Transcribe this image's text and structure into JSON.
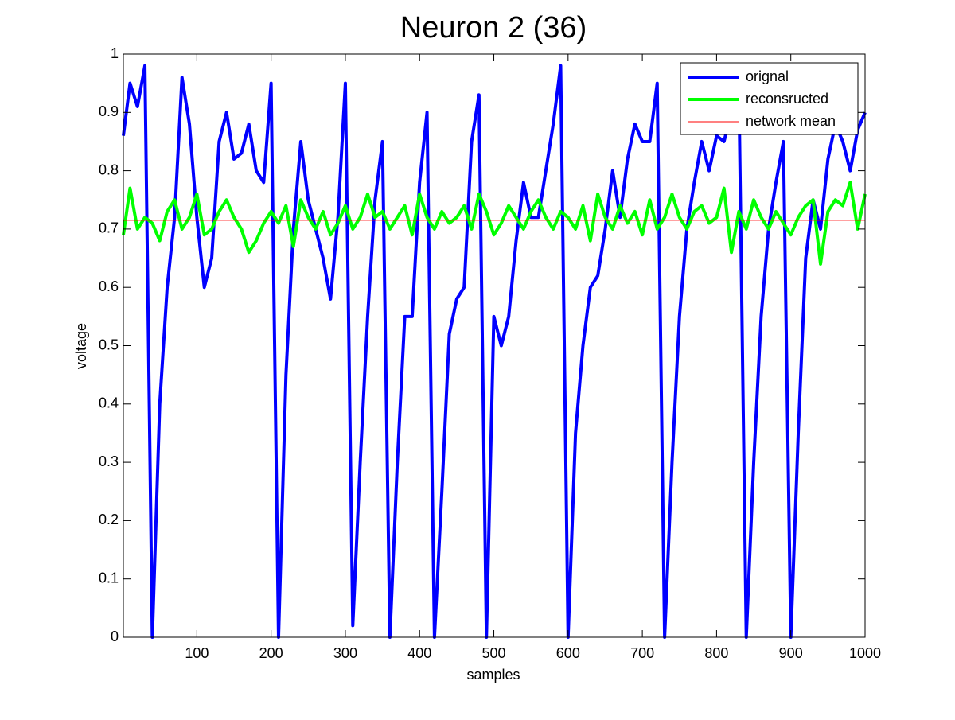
{
  "chart_data": {
    "type": "line",
    "title": "Neuron 2 (36)",
    "x_label": "samples",
    "y_label": "voltage",
    "xlim": [
      1,
      1000
    ],
    "ylim": [
      0,
      1
    ],
    "xticks": [
      100,
      200,
      300,
      400,
      500,
      600,
      700,
      800,
      900,
      1000
    ],
    "yticks": [
      0,
      0.1,
      0.2,
      0.3,
      0.4,
      0.5,
      0.6,
      0.7,
      0.8,
      0.9,
      1
    ],
    "grid": false,
    "legend": "upper right",
    "series": [
      {
        "name": "orignal",
        "color": "#0000ff",
        "width": 4,
        "x": [
          1,
          10,
          20,
          30,
          40,
          50,
          60,
          70,
          80,
          90,
          100,
          110,
          120,
          130,
          140,
          150,
          160,
          170,
          180,
          190,
          200,
          210,
          220,
          230,
          240,
          250,
          260,
          270,
          280,
          290,
          300,
          310,
          320,
          330,
          340,
          350,
          360,
          370,
          380,
          390,
          400,
          410,
          420,
          430,
          440,
          450,
          460,
          470,
          480,
          490,
          500,
          510,
          520,
          530,
          540,
          550,
          560,
          570,
          580,
          590,
          600,
          610,
          620,
          630,
          640,
          650,
          660,
          670,
          680,
          690,
          700,
          710,
          720,
          730,
          740,
          750,
          760,
          770,
          780,
          790,
          800,
          810,
          820,
          830,
          840,
          850,
          860,
          870,
          880,
          890,
          900,
          910,
          920,
          930,
          940,
          950,
          960,
          970,
          980,
          990,
          1000
        ],
        "values": [
          0.86,
          0.95,
          0.91,
          0.98,
          0.0,
          0.4,
          0.6,
          0.72,
          0.96,
          0.88,
          0.72,
          0.6,
          0.65,
          0.85,
          0.9,
          0.82,
          0.83,
          0.88,
          0.8,
          0.78,
          0.95,
          0.0,
          0.45,
          0.7,
          0.85,
          0.75,
          0.7,
          0.65,
          0.58,
          0.72,
          0.95,
          0.02,
          0.3,
          0.55,
          0.75,
          0.85,
          0.0,
          0.3,
          0.55,
          0.55,
          0.78,
          0.9,
          0.0,
          0.25,
          0.52,
          0.58,
          0.6,
          0.85,
          0.93,
          0.0,
          0.55,
          0.5,
          0.55,
          0.68,
          0.78,
          0.72,
          0.72,
          0.8,
          0.88,
          0.98,
          0.0,
          0.35,
          0.5,
          0.6,
          0.62,
          0.7,
          0.8,
          0.72,
          0.82,
          0.88,
          0.85,
          0.85,
          0.95,
          0.0,
          0.3,
          0.55,
          0.7,
          0.78,
          0.85,
          0.8,
          0.86,
          0.85,
          0.9,
          0.95,
          0.0,
          0.3,
          0.55,
          0.7,
          0.78,
          0.85,
          0.0,
          0.35,
          0.65,
          0.75,
          0.7,
          0.82,
          0.88,
          0.85,
          0.8,
          0.87,
          0.9
        ]
      },
      {
        "name": "reconsructed",
        "color": "#00ff00",
        "width": 4,
        "x": [
          1,
          10,
          20,
          30,
          40,
          50,
          60,
          70,
          80,
          90,
          100,
          110,
          120,
          130,
          140,
          150,
          160,
          170,
          180,
          190,
          200,
          210,
          220,
          230,
          240,
          250,
          260,
          270,
          280,
          290,
          300,
          310,
          320,
          330,
          340,
          350,
          360,
          370,
          380,
          390,
          400,
          410,
          420,
          430,
          440,
          450,
          460,
          470,
          480,
          490,
          500,
          510,
          520,
          530,
          540,
          550,
          560,
          570,
          580,
          590,
          600,
          610,
          620,
          630,
          640,
          650,
          660,
          670,
          680,
          690,
          700,
          710,
          720,
          730,
          740,
          750,
          760,
          770,
          780,
          790,
          800,
          810,
          820,
          830,
          840,
          850,
          860,
          870,
          880,
          890,
          900,
          910,
          920,
          930,
          940,
          950,
          960,
          970,
          980,
          990,
          1000
        ],
        "values": [
          0.69,
          0.77,
          0.7,
          0.72,
          0.71,
          0.68,
          0.73,
          0.75,
          0.7,
          0.72,
          0.76,
          0.69,
          0.7,
          0.73,
          0.75,
          0.72,
          0.7,
          0.66,
          0.68,
          0.71,
          0.73,
          0.71,
          0.74,
          0.67,
          0.75,
          0.72,
          0.7,
          0.73,
          0.69,
          0.71,
          0.74,
          0.7,
          0.72,
          0.76,
          0.72,
          0.73,
          0.7,
          0.72,
          0.74,
          0.69,
          0.76,
          0.72,
          0.7,
          0.73,
          0.71,
          0.72,
          0.74,
          0.7,
          0.76,
          0.73,
          0.69,
          0.71,
          0.74,
          0.72,
          0.7,
          0.73,
          0.75,
          0.72,
          0.7,
          0.73,
          0.72,
          0.7,
          0.74,
          0.68,
          0.76,
          0.72,
          0.7,
          0.74,
          0.71,
          0.73,
          0.69,
          0.75,
          0.7,
          0.72,
          0.76,
          0.72,
          0.7,
          0.73,
          0.74,
          0.71,
          0.72,
          0.77,
          0.66,
          0.73,
          0.7,
          0.75,
          0.72,
          0.7,
          0.73,
          0.71,
          0.69,
          0.72,
          0.74,
          0.75,
          0.64,
          0.73,
          0.75,
          0.74,
          0.78,
          0.7,
          0.76
        ]
      },
      {
        "name": "network mean",
        "color": "#ff0000",
        "width": 1,
        "x": [
          1,
          1000
        ],
        "values": [
          0.715,
          0.715
        ]
      }
    ]
  }
}
